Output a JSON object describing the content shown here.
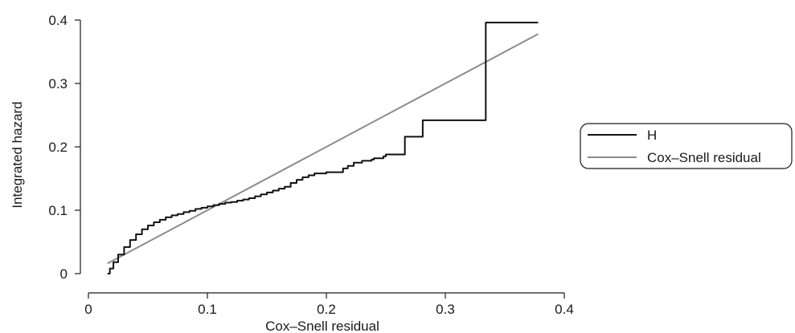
{
  "chart_data": {
    "type": "line",
    "xlabel": "Cox–Snell residual",
    "ylabel": "Integrated hazard",
    "xlim": [
      0,
      0.4
    ],
    "ylim": [
      0,
      0.4
    ],
    "xticks": [
      "0",
      "0.1",
      "0.2",
      "0.3",
      "0.4"
    ],
    "yticks": [
      "0",
      "0.1",
      "0.2",
      "0.3",
      "0.4"
    ],
    "grid": false,
    "legend_position": "right",
    "series": [
      {
        "name": "H",
        "color": "#111111",
        "style": "step",
        "x": [
          0.016,
          0.018,
          0.021,
          0.025,
          0.03,
          0.035,
          0.04,
          0.045,
          0.05,
          0.055,
          0.06,
          0.065,
          0.07,
          0.075,
          0.08,
          0.085,
          0.09,
          0.095,
          0.1,
          0.105,
          0.11,
          0.115,
          0.12,
          0.125,
          0.13,
          0.135,
          0.14,
          0.145,
          0.15,
          0.155,
          0.16,
          0.165,
          0.17,
          0.175,
          0.18,
          0.185,
          0.19,
          0.2,
          0.212,
          0.214,
          0.218,
          0.223,
          0.23,
          0.238,
          0.24,
          0.248,
          0.25,
          0.264,
          0.266,
          0.279,
          0.281,
          0.332,
          0.334,
          0.378
        ],
        "y": [
          0.0,
          0.008,
          0.018,
          0.03,
          0.042,
          0.053,
          0.062,
          0.07,
          0.076,
          0.081,
          0.085,
          0.089,
          0.092,
          0.094,
          0.097,
          0.099,
          0.102,
          0.104,
          0.106,
          0.108,
          0.11,
          0.112,
          0.113,
          0.115,
          0.117,
          0.119,
          0.122,
          0.125,
          0.128,
          0.131,
          0.134,
          0.137,
          0.143,
          0.148,
          0.152,
          0.155,
          0.158,
          0.16,
          0.16,
          0.166,
          0.17,
          0.175,
          0.178,
          0.18,
          0.182,
          0.185,
          0.188,
          0.188,
          0.216,
          0.216,
          0.242,
          0.242,
          0.396,
          0.396
        ]
      },
      {
        "name": "Cox–Snell residual",
        "color": "#8c8c8c",
        "style": "line",
        "x": [
          0.016,
          0.378
        ],
        "y": [
          0.016,
          0.378
        ]
      }
    ]
  }
}
